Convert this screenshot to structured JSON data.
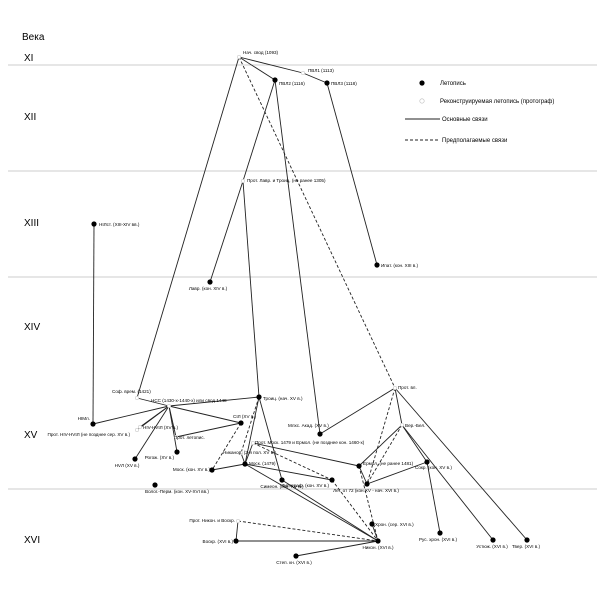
{
  "header": {
    "title": "Века"
  },
  "centuries": [
    "XI",
    "XII",
    "XIII",
    "XIV",
    "XV",
    "XVI"
  ],
  "legend": [
    "Летопись",
    "Реконструируемая летопись (протограф)",
    "Основные связи",
    "Предполагаемые связи"
  ],
  "nodes": [
    {
      "label": "Нач. свод (1093)"
    },
    {
      "label": "ПВЛ1 (1113)"
    },
    {
      "label": "ПВЛ2 (1116)"
    },
    {
      "label": "ПВЛ3 (1118)"
    },
    {
      "label": "Прот. Лавр. и Троиц. (не ранее 1305)"
    },
    {
      "label": "НIЛст. (XIII-XIV вв.)"
    },
    {
      "label": "Ипат. (кон. XIII в.)"
    },
    {
      "label": "Лавр. (кон. XIV в.)"
    },
    {
      "label": "Соф. врем. (1421)"
    },
    {
      "label": "НIМл."
    },
    {
      "label": "Прот. НIV-НVIЛ (не позднее сер. XV в.)"
    },
    {
      "label": "НСС (1430-х-1440-х) или свод 1448"
    },
    {
      "label": "Троиц. (нач. XV в.)"
    },
    {
      "label": "Прот. вл."
    },
    {
      "label": "Вер.-Бел."
    },
    {
      "label": "СIЛ (XV в.)"
    },
    {
      "label": "НIV-НVIЛ (XV в.)"
    },
    {
      "label": "Прот. летопис."
    },
    {
      "label": "Млхс. Акад. (XV в.)"
    },
    {
      "label": "Прот. Моск. 1479 и Ермол. (не позднее кон. 1460-х)"
    },
    {
      "label": "НVЛ (XV в.)"
    },
    {
      "label": "Рогож. (XV в.)"
    },
    {
      "label": "Никанор. (2-я пол. XV в.)"
    },
    {
      "label": "Моск. (кон. XV в.)"
    },
    {
      "label": "Моск. (1479)"
    },
    {
      "label": "Ермол. (не ранее 1481)"
    },
    {
      "label": "Сокр. (кон. XV в.)"
    },
    {
      "label": "Лет. от 72 (кон.XV - нач. XVI в.)"
    },
    {
      "label": "Типограф. (кон. XV в.)"
    },
    {
      "label": "Симеон. (кон. XV в.)"
    },
    {
      "label": "Волог.-Перм. (кон. XV-XVI вв.)"
    },
    {
      "label": "Прот. Никон. и Воскр."
    },
    {
      "label": "Хрон. (сер. XVI в.)"
    },
    {
      "label": "Воскр. (XVI в.)"
    },
    {
      "label": "Никон. (XVI в.)"
    },
    {
      "label": "Рус. хрон. (XVI в.)"
    },
    {
      "label": "Устюж. (XVI в.)"
    },
    {
      "label": "Твер. (XVI в.)"
    },
    {
      "label": "Степ. кн. (XVI в.)"
    }
  ]
}
